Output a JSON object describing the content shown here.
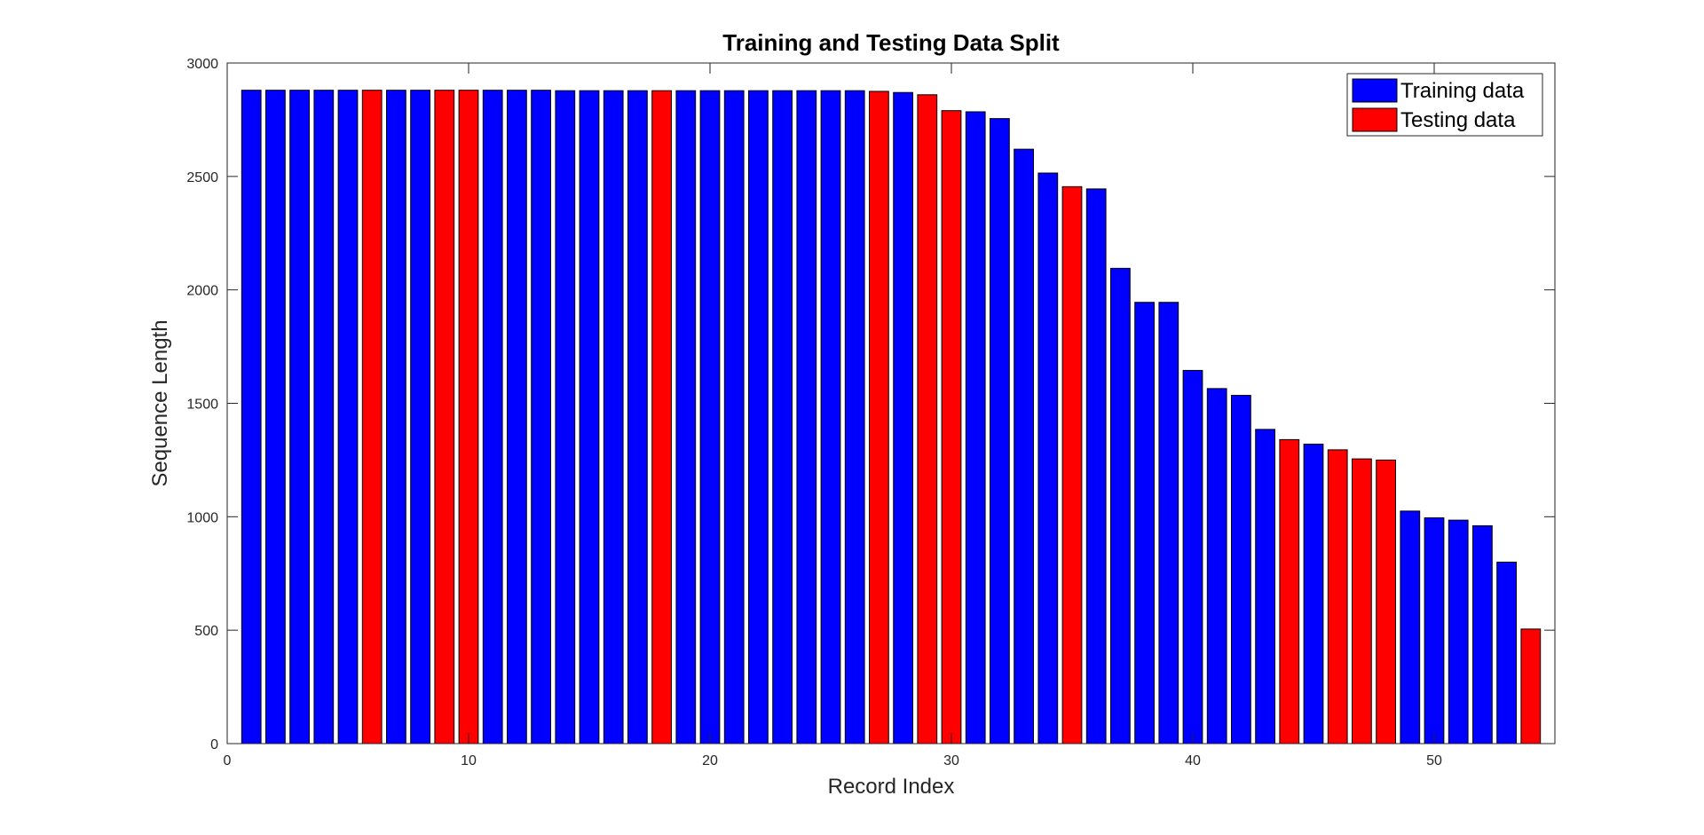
{
  "chart_data": {
    "type": "bar",
    "title": "Training and Testing Data Split",
    "xlabel": "Record Index",
    "ylabel": "Sequence Length",
    "xlim": [
      0,
      55
    ],
    "ylim": [
      0,
      3000
    ],
    "xticks": [
      0,
      10,
      20,
      30,
      40,
      50
    ],
    "yticks": [
      0,
      500,
      1000,
      1500,
      2000,
      2500,
      3000
    ],
    "grid": false,
    "legend_position": "top-right",
    "series": [
      {
        "name": "Training data",
        "color": "#0000ff"
      },
      {
        "name": "Testing data",
        "color": "#ff0000"
      }
    ],
    "x": [
      1,
      2,
      3,
      4,
      5,
      6,
      7,
      8,
      9,
      10,
      11,
      12,
      13,
      14,
      15,
      16,
      17,
      18,
      19,
      20,
      21,
      22,
      23,
      24,
      25,
      26,
      27,
      28,
      29,
      30,
      31,
      32,
      33,
      34,
      35,
      36,
      37,
      38,
      39,
      40,
      41,
      42,
      43,
      44,
      45,
      46,
      47,
      48,
      49,
      50,
      51,
      52,
      53,
      54
    ],
    "values": [
      2880,
      2880,
      2880,
      2880,
      2880,
      2880,
      2880,
      2880,
      2880,
      2880,
      2880,
      2880,
      2880,
      2878,
      2878,
      2878,
      2878,
      2878,
      2878,
      2878,
      2878,
      2878,
      2878,
      2878,
      2878,
      2878,
      2875,
      2870,
      2860,
      2790,
      2785,
      2755,
      2620,
      2515,
      2455,
      2445,
      2095,
      1945,
      1945,
      1645,
      1565,
      1535,
      1385,
      1340,
      1320,
      1295,
      1255,
      1250,
      1025,
      995,
      985,
      960,
      800,
      505
    ],
    "split": [
      "train",
      "train",
      "train",
      "train",
      "train",
      "test",
      "train",
      "train",
      "test",
      "test",
      "train",
      "train",
      "train",
      "train",
      "train",
      "train",
      "train",
      "test",
      "train",
      "train",
      "train",
      "train",
      "train",
      "train",
      "train",
      "train",
      "test",
      "train",
      "test",
      "test",
      "train",
      "train",
      "train",
      "train",
      "test",
      "train",
      "train",
      "train",
      "train",
      "train",
      "train",
      "train",
      "train",
      "test",
      "train",
      "test",
      "test",
      "test",
      "train",
      "train",
      "train",
      "train",
      "train",
      "test"
    ]
  }
}
